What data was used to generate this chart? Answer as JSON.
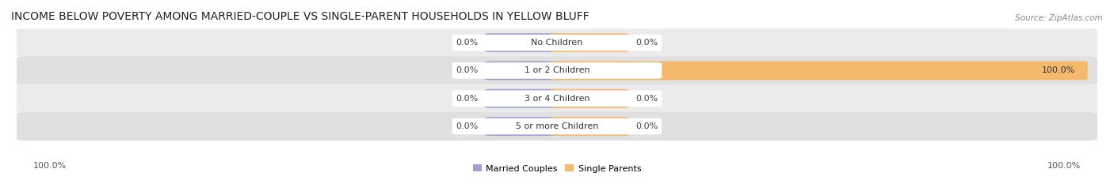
{
  "title": "INCOME BELOW POVERTY AMONG MARRIED-COUPLE VS SINGLE-PARENT HOUSEHOLDS IN YELLOW BLUFF",
  "source": "Source: ZipAtlas.com",
  "categories": [
    "No Children",
    "1 or 2 Children",
    "3 or 4 Children",
    "5 or more Children"
  ],
  "married_values": [
    0.0,
    0.0,
    0.0,
    0.0
  ],
  "single_values": [
    0.0,
    100.0,
    0.0,
    0.0
  ],
  "married_color": "#a0a0d0",
  "single_color": "#f5b96e",
  "row_bg_colors": [
    "#ebebeb",
    "#e0e0e0",
    "#ebebeb",
    "#e0e0e0"
  ],
  "label_bg_color": "#ffffff",
  "title_fontsize": 10,
  "label_fontsize": 8,
  "tick_fontsize": 8,
  "source_fontsize": 7.5,
  "legend_fontsize": 8,
  "max_val": 100.0,
  "bottom_left_label": "100.0%",
  "bottom_right_label": "100.0%",
  "background_color": "#ffffff",
  "min_bar_width": 0.06
}
